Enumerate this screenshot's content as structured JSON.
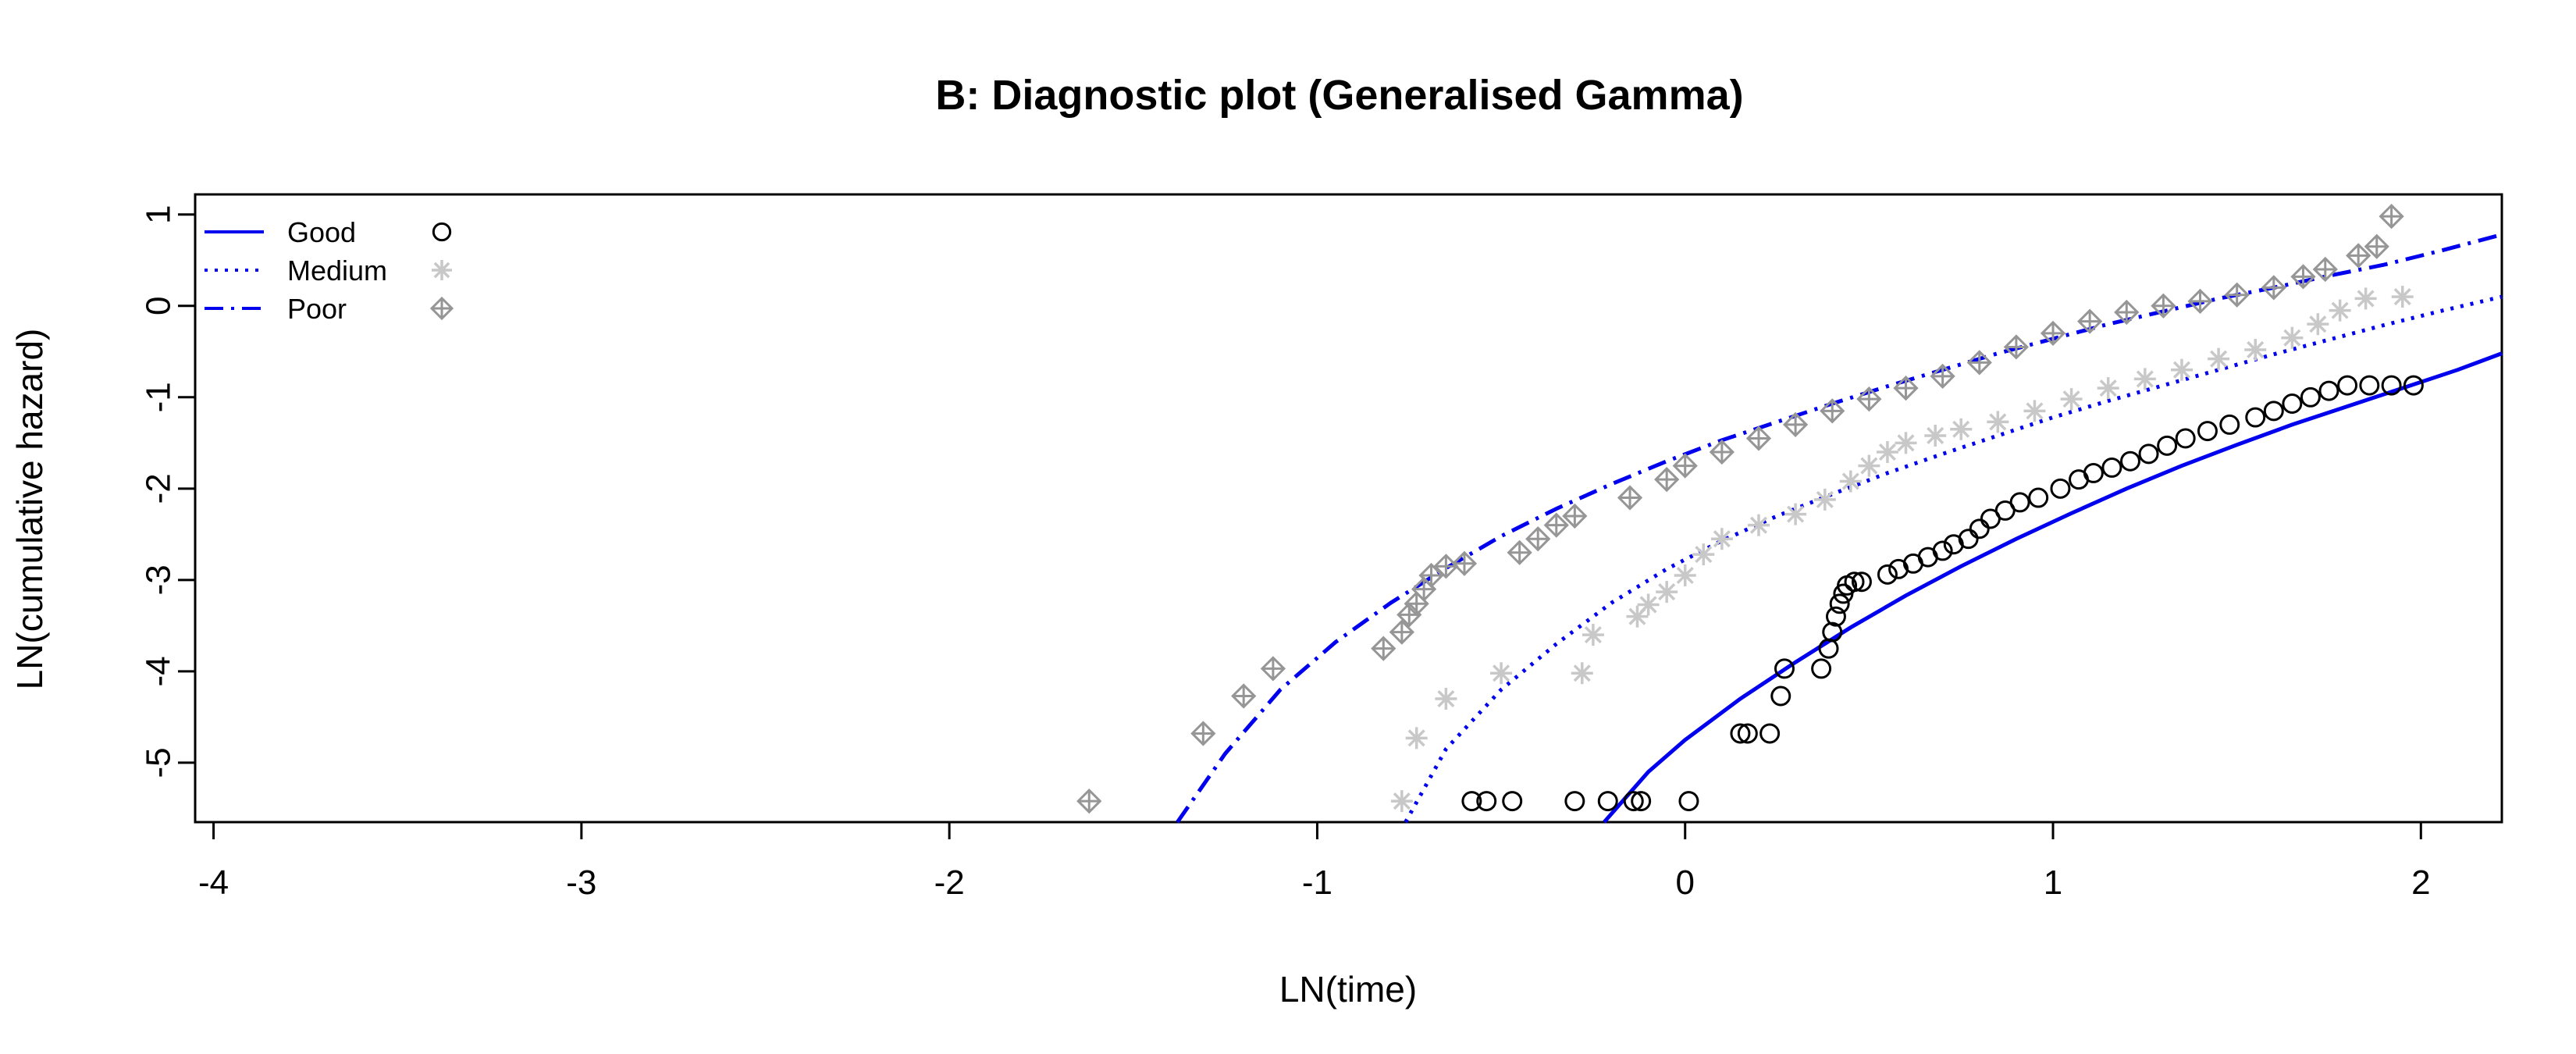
{
  "chart_data": {
    "type": "scatter",
    "title": "B: Diagnostic plot (Generalised Gamma)",
    "xlabel": "LN(time)",
    "ylabel": "LN(cumulative hazard)",
    "xlim": [
      -4.05,
      2.22
    ],
    "ylim": [
      -5.65,
      1.22
    ],
    "x_ticks": [
      -4,
      -3,
      -2,
      -1,
      0,
      1,
      2
    ],
    "y_ticks": [
      -5,
      -4,
      -3,
      -2,
      -1,
      0,
      1
    ],
    "grid": false,
    "legend_position": "top-left",
    "series": [
      {
        "name": "Good",
        "line_style": "solid",
        "line_color": "#0000ee",
        "marker": "circle",
        "marker_color": "#000000",
        "points": [
          [
            -0.58,
            -5.42
          ],
          [
            -0.54,
            -5.42
          ],
          [
            -0.47,
            -5.42
          ],
          [
            -0.3,
            -5.42
          ],
          [
            -0.21,
            -5.42
          ],
          [
            -0.14,
            -5.42
          ],
          [
            -0.12,
            -5.42
          ],
          [
            0.01,
            -5.42
          ],
          [
            0.15,
            -4.68
          ],
          [
            0.17,
            -4.68
          ],
          [
            0.23,
            -4.68
          ],
          [
            0.26,
            -4.27
          ],
          [
            0.27,
            -3.97
          ],
          [
            0.37,
            -3.97
          ],
          [
            0.39,
            -3.75
          ],
          [
            0.4,
            -3.57
          ],
          [
            0.41,
            -3.4
          ],
          [
            0.42,
            -3.26
          ],
          [
            0.43,
            -3.15
          ],
          [
            0.44,
            -3.06
          ],
          [
            0.46,
            -3.02
          ],
          [
            0.48,
            -3.02
          ],
          [
            0.55,
            -2.94
          ],
          [
            0.58,
            -2.88
          ],
          [
            0.62,
            -2.82
          ],
          [
            0.66,
            -2.75
          ],
          [
            0.7,
            -2.68
          ],
          [
            0.73,
            -2.61
          ],
          [
            0.77,
            -2.55
          ],
          [
            0.8,
            -2.44
          ],
          [
            0.83,
            -2.33
          ],
          [
            0.87,
            -2.24
          ],
          [
            0.91,
            -2.15
          ],
          [
            0.96,
            -2.1
          ],
          [
            1.02,
            -2.0
          ],
          [
            1.07,
            -1.9
          ],
          [
            1.11,
            -1.83
          ],
          [
            1.16,
            -1.77
          ],
          [
            1.21,
            -1.7
          ],
          [
            1.26,
            -1.62
          ],
          [
            1.31,
            -1.53
          ],
          [
            1.36,
            -1.45
          ],
          [
            1.42,
            -1.37
          ],
          [
            1.48,
            -1.3
          ],
          [
            1.55,
            -1.22
          ],
          [
            1.6,
            -1.15
          ],
          [
            1.65,
            -1.07
          ],
          [
            1.7,
            -1.0
          ],
          [
            1.75,
            -0.93
          ],
          [
            1.8,
            -0.87
          ],
          [
            1.86,
            -0.87
          ],
          [
            1.92,
            -0.87
          ],
          [
            1.98,
            -0.87
          ]
        ],
        "fit": [
          [
            -0.22,
            -5.65
          ],
          [
            -0.1,
            -5.1
          ],
          [
            0.0,
            -4.75
          ],
          [
            0.15,
            -4.3
          ],
          [
            0.3,
            -3.9
          ],
          [
            0.45,
            -3.52
          ],
          [
            0.6,
            -3.17
          ],
          [
            0.75,
            -2.85
          ],
          [
            0.9,
            -2.55
          ],
          [
            1.05,
            -2.27
          ],
          [
            1.2,
            -2.0
          ],
          [
            1.35,
            -1.75
          ],
          [
            1.5,
            -1.52
          ],
          [
            1.65,
            -1.3
          ],
          [
            1.8,
            -1.1
          ],
          [
            1.95,
            -0.9
          ],
          [
            2.1,
            -0.7
          ],
          [
            2.22,
            -0.52
          ]
        ]
      },
      {
        "name": "Medium",
        "line_style": "dotted",
        "line_color": "#0000ee",
        "marker": "asterisk",
        "marker_color": "#c8c8c8",
        "points": [
          [
            -0.77,
            -5.42
          ],
          [
            -0.73,
            -4.73
          ],
          [
            -0.65,
            -4.3
          ],
          [
            -0.5,
            -4.02
          ],
          [
            -0.28,
            -4.02
          ],
          [
            -0.25,
            -3.6
          ],
          [
            -0.13,
            -3.4
          ],
          [
            -0.1,
            -3.27
          ],
          [
            -0.05,
            -3.13
          ],
          [
            0.0,
            -2.95
          ],
          [
            0.05,
            -2.72
          ],
          [
            0.1,
            -2.55
          ],
          [
            0.2,
            -2.4
          ],
          [
            0.3,
            -2.28
          ],
          [
            0.38,
            -2.12
          ],
          [
            0.45,
            -1.92
          ],
          [
            0.5,
            -1.75
          ],
          [
            0.55,
            -1.6
          ],
          [
            0.6,
            -1.5
          ],
          [
            0.68,
            -1.42
          ],
          [
            0.75,
            -1.35
          ],
          [
            0.85,
            -1.27
          ],
          [
            0.95,
            -1.15
          ],
          [
            1.05,
            -1.02
          ],
          [
            1.15,
            -0.9
          ],
          [
            1.25,
            -0.8
          ],
          [
            1.35,
            -0.7
          ],
          [
            1.45,
            -0.58
          ],
          [
            1.55,
            -0.48
          ],
          [
            1.65,
            -0.35
          ],
          [
            1.72,
            -0.2
          ],
          [
            1.78,
            -0.05
          ],
          [
            1.85,
            0.08
          ],
          [
            1.95,
            0.1
          ]
        ],
        "fit": [
          [
            -0.76,
            -5.65
          ],
          [
            -0.65,
            -4.85
          ],
          [
            -0.5,
            -4.2
          ],
          [
            -0.35,
            -3.7
          ],
          [
            -0.2,
            -3.25
          ],
          [
            -0.05,
            -2.88
          ],
          [
            0.1,
            -2.57
          ],
          [
            0.25,
            -2.3
          ],
          [
            0.4,
            -2.06
          ],
          [
            0.55,
            -1.83
          ],
          [
            0.7,
            -1.62
          ],
          [
            0.85,
            -1.42
          ],
          [
            1.0,
            -1.22
          ],
          [
            1.15,
            -1.04
          ],
          [
            1.3,
            -0.87
          ],
          [
            1.45,
            -0.7
          ],
          [
            1.6,
            -0.53
          ],
          [
            1.75,
            -0.37
          ],
          [
            1.9,
            -0.21
          ],
          [
            2.05,
            -0.06
          ],
          [
            2.22,
            0.1
          ]
        ]
      },
      {
        "name": "Poor",
        "line_style": "dashdot",
        "line_color": "#0000ee",
        "marker": "diamond-plus",
        "marker_color": "#969696",
        "points": [
          [
            -1.62,
            -5.42
          ],
          [
            -1.31,
            -4.68
          ],
          [
            -1.2,
            -4.27
          ],
          [
            -1.12,
            -3.97
          ],
          [
            -0.82,
            -3.75
          ],
          [
            -0.77,
            -3.57
          ],
          [
            -0.75,
            -3.38
          ],
          [
            -0.73,
            -3.26
          ],
          [
            -0.71,
            -3.1
          ],
          [
            -0.69,
            -2.95
          ],
          [
            -0.65,
            -2.85
          ],
          [
            -0.6,
            -2.82
          ],
          [
            -0.45,
            -2.7
          ],
          [
            -0.4,
            -2.55
          ],
          [
            -0.35,
            -2.4
          ],
          [
            -0.3,
            -2.3
          ],
          [
            -0.15,
            -2.1
          ],
          [
            -0.05,
            -1.9
          ],
          [
            0.0,
            -1.75
          ],
          [
            0.1,
            -1.6
          ],
          [
            0.2,
            -1.45
          ],
          [
            0.3,
            -1.3
          ],
          [
            0.4,
            -1.15
          ],
          [
            0.5,
            -1.02
          ],
          [
            0.6,
            -0.9
          ],
          [
            0.7,
            -0.77
          ],
          [
            0.8,
            -0.62
          ],
          [
            0.9,
            -0.45
          ],
          [
            1.0,
            -0.3
          ],
          [
            1.1,
            -0.17
          ],
          [
            1.2,
            -0.07
          ],
          [
            1.3,
            0.0
          ],
          [
            1.4,
            0.05
          ],
          [
            1.5,
            0.12
          ],
          [
            1.6,
            0.2
          ],
          [
            1.68,
            0.32
          ],
          [
            1.74,
            0.4
          ],
          [
            1.83,
            0.55
          ],
          [
            1.88,
            0.65
          ],
          [
            1.92,
            0.98
          ]
        ],
        "fit": [
          [
            -1.38,
            -5.65
          ],
          [
            -1.25,
            -4.9
          ],
          [
            -1.1,
            -4.2
          ],
          [
            -0.95,
            -3.68
          ],
          [
            -0.8,
            -3.25
          ],
          [
            -0.65,
            -2.87
          ],
          [
            -0.5,
            -2.52
          ],
          [
            -0.35,
            -2.22
          ],
          [
            -0.2,
            -1.95
          ],
          [
            -0.05,
            -1.7
          ],
          [
            0.1,
            -1.47
          ],
          [
            0.25,
            -1.27
          ],
          [
            0.4,
            -1.07
          ],
          [
            0.55,
            -0.88
          ],
          [
            0.7,
            -0.7
          ],
          [
            0.85,
            -0.52
          ],
          [
            1.0,
            -0.36
          ],
          [
            1.15,
            -0.2
          ],
          [
            1.3,
            -0.06
          ],
          [
            1.45,
            0.08
          ],
          [
            1.6,
            0.2
          ],
          [
            1.75,
            0.33
          ],
          [
            1.9,
            0.45
          ],
          [
            2.05,
            0.6
          ],
          [
            2.22,
            0.78
          ]
        ]
      }
    ]
  }
}
